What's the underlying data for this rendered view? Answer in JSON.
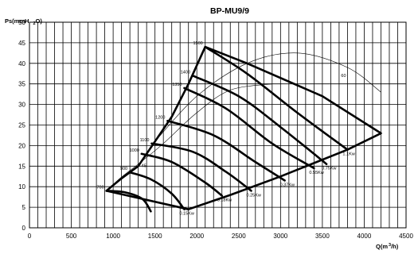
{
  "chart_data": {
    "type": "line",
    "title": "BP-MU9/9",
    "ylabel": {
      "main": "Ps(mmH",
      "sub": "2",
      "tail": "O)"
    },
    "xlabel": {
      "main": "Q(m",
      "sup": "3",
      "tail": "/h)"
    },
    "xlim": [
      0,
      4500
    ],
    "ylim": [
      0,
      50
    ],
    "x_ticks": [
      0,
      500,
      1000,
      1500,
      2000,
      2500,
      3000,
      3500,
      4000,
      4500
    ],
    "y_ticks": [
      0,
      5,
      10,
      15,
      20,
      25,
      30,
      35,
      40,
      45,
      50
    ],
    "grid": true,
    "envelope": {
      "x": [
        920,
        1100,
        1300,
        1500,
        1700,
        1900,
        2100,
        2600,
        3500,
        4200,
        3800,
        3000,
        2400,
        1900
      ],
      "y": [
        9,
        12,
        15,
        21,
        27,
        35,
        44,
        40,
        32,
        23,
        19,
        12.5,
        8,
        4.5
      ]
    },
    "rpm_curves": [
      {
        "label": "700",
        "points": [
          [
            920,
            9
          ],
          [
            1150,
            8.6
          ],
          [
            1350,
            7
          ],
          [
            1450,
            4
          ]
        ]
      },
      {
        "label": "900",
        "points": [
          [
            1200,
            13.5
          ],
          [
            1450,
            11.8
          ],
          [
            1700,
            8.3
          ],
          [
            1850,
            4.5
          ]
        ]
      },
      {
        "label": "1000",
        "points": [
          [
            1340,
            18
          ],
          [
            1700,
            16
          ],
          [
            2100,
            11
          ],
          [
            2300,
            7.8
          ]
        ]
      },
      {
        "label": "1100",
        "points": [
          [
            1460,
            20.5
          ],
          [
            1950,
            18.5
          ],
          [
            2350,
            13.6
          ],
          [
            2650,
            9
          ]
        ]
      },
      {
        "label": "1200",
        "points": [
          [
            1650,
            26
          ],
          [
            2200,
            22.5
          ],
          [
            2700,
            16
          ],
          [
            3050,
            11.5
          ]
        ]
      },
      {
        "label": "1350",
        "points": [
          [
            1850,
            34
          ],
          [
            2350,
            29
          ],
          [
            2900,
            20.5
          ],
          [
            3400,
            14.5
          ]
        ]
      },
      {
        "label": "1400",
        "points": [
          [
            1950,
            37
          ],
          [
            2500,
            32
          ],
          [
            3000,
            24.5
          ],
          [
            3550,
            15.5
          ]
        ]
      },
      {
        "label": "1500",
        "points": [
          [
            2100,
            44
          ],
          [
            2600,
            37.5
          ],
          [
            3200,
            28
          ],
          [
            3800,
            19
          ]
        ]
      }
    ],
    "system_curves": [
      {
        "label": "45",
        "points": [
          [
            920,
            9
          ],
          [
            1080,
            12
          ],
          [
            1300,
            15.5
          ],
          [
            1600,
            20.5
          ],
          [
            2000,
            28
          ],
          [
            2400,
            33.5
          ],
          [
            2900,
            35
          ]
        ]
      },
      {
        "label": "60",
        "points": [
          [
            1500,
            21
          ],
          [
            2000,
            32
          ],
          [
            2600,
            40
          ],
          [
            3200,
            42.5
          ],
          [
            3800,
            39
          ],
          [
            4200,
            33
          ]
        ]
      }
    ],
    "power_labels": [
      "0.15Kw",
      "0.18Kw",
      "0.25Kw",
      "0.37Kw",
      "0.55Kw",
      "0.75Kw",
      "1.1Kw"
    ]
  }
}
